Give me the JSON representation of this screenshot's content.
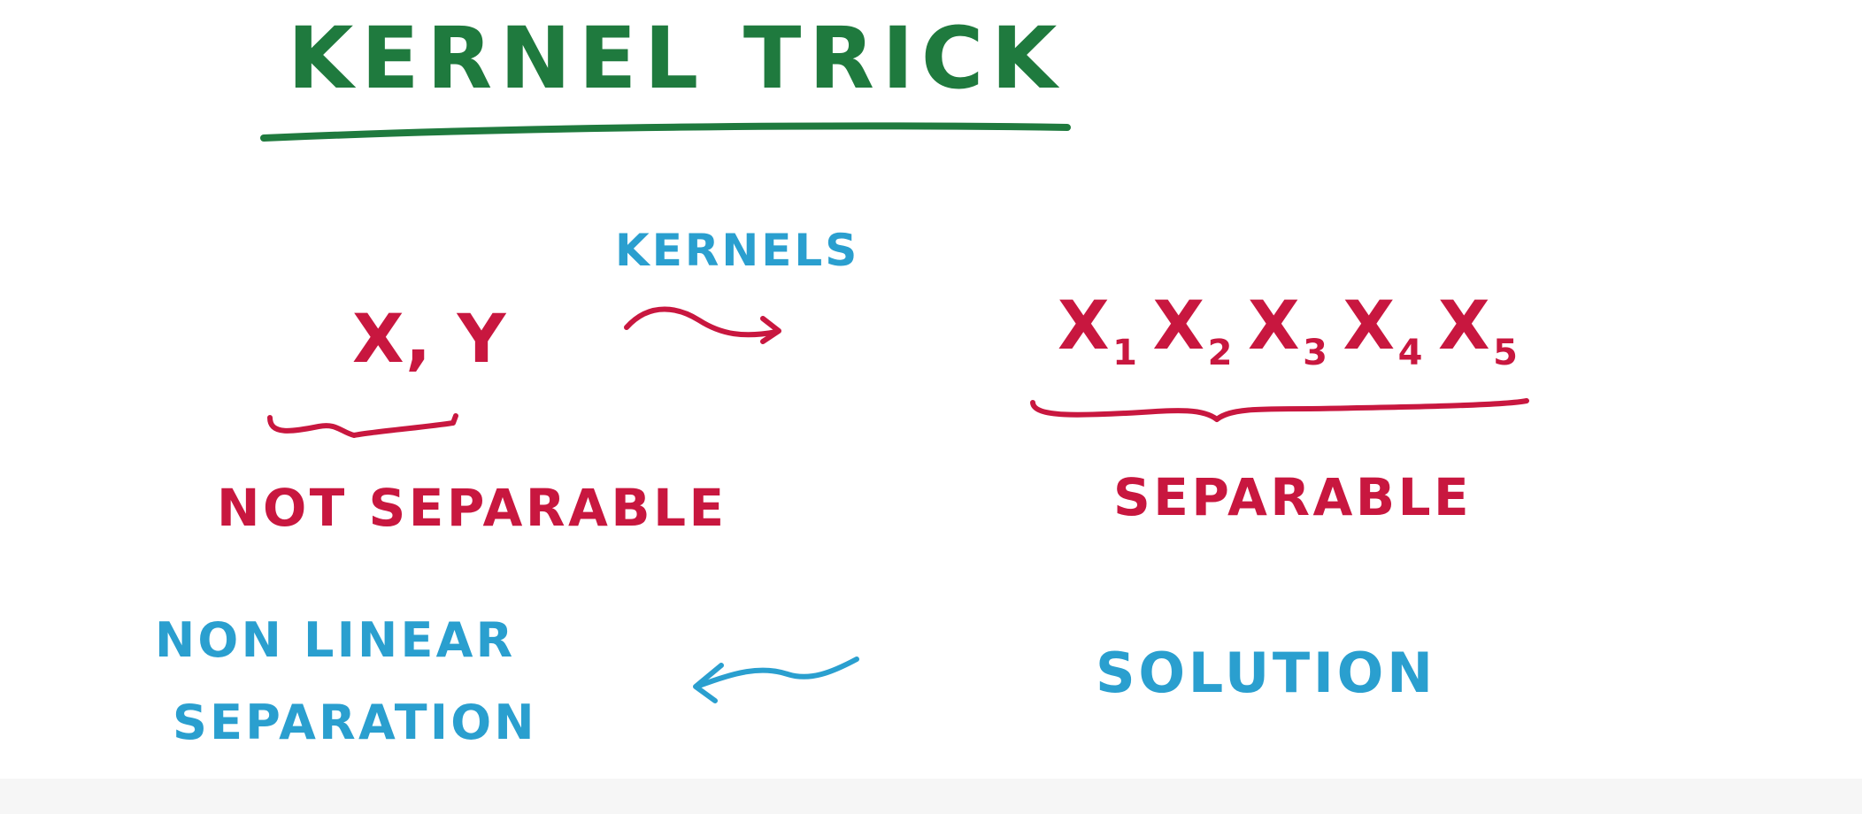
{
  "title": "KERNEL TRICK",
  "left": {
    "variables": "X, Y",
    "label": "NOT SEPARABLE"
  },
  "arrow_top": {
    "label": "KERNELS"
  },
  "right": {
    "terms": [
      {
        "letter": "X",
        "sub": "1"
      },
      {
        "letter": "X",
        "sub": "2"
      },
      {
        "letter": "X",
        "sub": "3"
      },
      {
        "letter": "X",
        "sub": "4"
      },
      {
        "letter": "X",
        "sub": "5"
      }
    ],
    "label": "SEPARABLE",
    "solution": "SOLUTION"
  },
  "bottom_left": {
    "line1": "NON LINEAR",
    "line2": "SEPARATION"
  },
  "colors": {
    "title": "#1f7a3e",
    "terms": "#c8173f",
    "annotations": "#2a9fcf"
  }
}
